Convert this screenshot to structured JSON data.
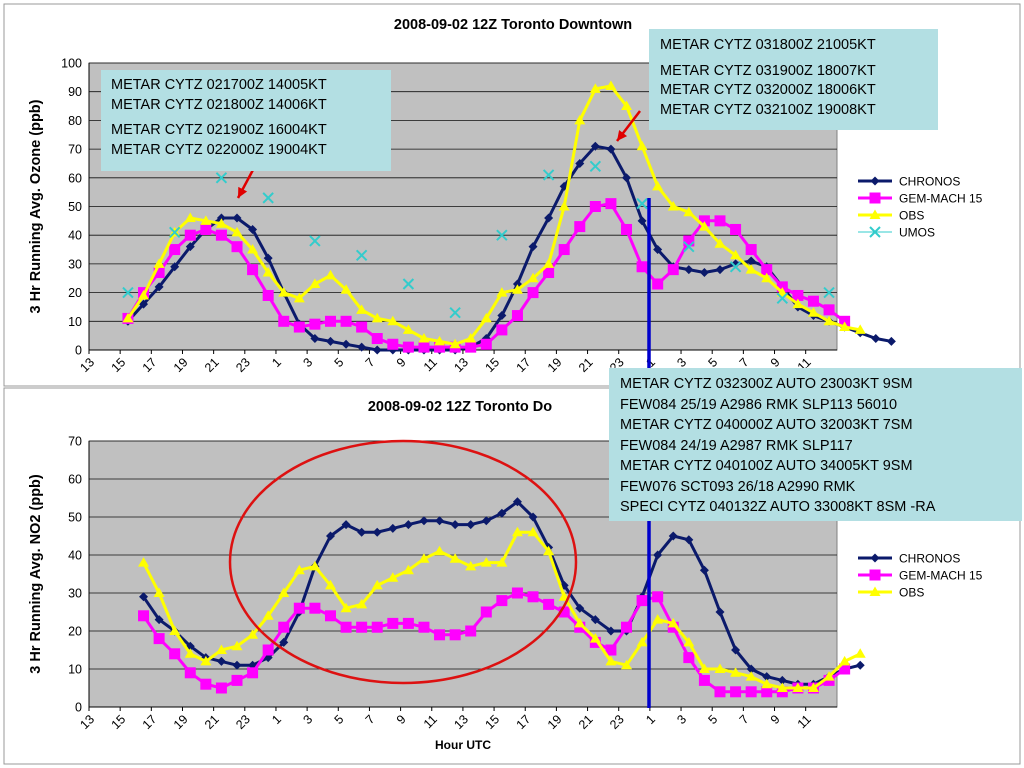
{
  "charts": [
    {
      "title": "2008-09-02 12Z Toronto Downtown",
      "ylabel": "3 Hr Running Avg. Ozone (ppb)",
      "xlabel": "",
      "ylim": [
        0,
        100
      ],
      "yticks": [
        0,
        10,
        20,
        30,
        40,
        50,
        60,
        70,
        80,
        90,
        100
      ],
      "series": [
        {
          "name": "CHRONOS",
          "color": "#0b1a6b"
        },
        {
          "name": "GEM-MACH 15",
          "color": "#ff00ff"
        },
        {
          "name": "OBS",
          "color": "#ffff00"
        },
        {
          "name": "UMOS",
          "color": "#33cccc"
        }
      ]
    },
    {
      "title": "2008-09-02 12Z Toronto Do",
      "ylabel": "3 Hr Running Avg. NO2 (ppb)",
      "xlabel": "Hour UTC",
      "ylim": [
        0,
        70
      ],
      "yticks": [
        0,
        10,
        20,
        30,
        40,
        50,
        60,
        70
      ],
      "series": [
        {
          "name": "CHRONOS",
          "color": "#0b1a6b"
        },
        {
          "name": "GEM-MACH 15",
          "color": "#ff00ff"
        },
        {
          "name": "OBS",
          "color": "#ffff00"
        }
      ]
    }
  ],
  "chart_data": [
    {
      "type": "line",
      "title": "2008-09-02 12Z Toronto Downtown",
      "ylabel": "3 Hr Running Avg. Ozone (ppb)",
      "ylim": [
        0,
        100
      ],
      "x_tick_labels": [
        "13",
        "15",
        "17",
        "19",
        "21",
        "23",
        "1",
        "3",
        "5",
        "7",
        "9",
        "11",
        "13",
        "15",
        "17",
        "19",
        "21",
        "23",
        "1",
        "3",
        "5",
        "7",
        "9",
        "11"
      ],
      "x_start_hour": 13,
      "legend_position": "right",
      "grid": true,
      "series": [
        {
          "name": "CHRONOS",
          "marker": "diamond",
          "start_index": 2,
          "values": [
            10,
            16,
            22,
            29,
            36,
            42,
            46,
            46,
            42,
            32,
            20,
            9,
            4,
            3,
            2,
            1,
            0,
            0,
            0,
            0,
            0,
            0,
            1,
            4,
            12,
            23,
            36,
            46,
            57,
            65,
            71,
            70,
            60,
            45,
            35,
            29,
            28,
            27,
            28,
            30,
            31,
            29,
            22,
            15,
            12,
            10,
            8,
            6,
            4,
            3
          ]
        },
        {
          "name": "GEM-MACH 15",
          "marker": "square",
          "start_index": 2,
          "values": [
            11,
            20,
            27,
            35,
            40,
            42,
            40,
            36,
            28,
            19,
            10,
            8,
            9,
            10,
            10,
            8,
            4,
            2,
            1,
            1,
            1,
            1,
            1,
            2,
            7,
            12,
            20,
            27,
            35,
            43,
            50,
            51,
            42,
            29,
            23,
            28,
            38,
            45,
            45,
            42,
            35,
            28,
            22,
            19,
            17,
            14,
            10
          ]
        },
        {
          "name": "OBS",
          "marker": "triangle",
          "start_index": 2,
          "values": [
            11,
            19,
            30,
            41,
            46,
            45,
            44,
            41,
            35,
            27,
            20,
            18,
            23,
            26,
            21,
            14,
            11,
            10,
            7,
            4,
            3,
            2,
            4,
            11,
            20,
            21,
            25,
            30,
            50,
            80,
            91,
            92,
            85,
            71,
            57,
            50,
            48,
            43,
            37,
            33,
            28,
            25,
            20,
            16,
            13,
            10,
            8,
            7
          ]
        },
        {
          "name": "UMOS",
          "marker": "x",
          "start_index": 2,
          "step": 3,
          "values": [
            20,
            41,
            60,
            53,
            38,
            33,
            23,
            13,
            40,
            61,
            64,
            51,
            36,
            29,
            18,
            20
          ]
        }
      ]
    },
    {
      "type": "line",
      "title": "2008-09-02 12Z Toronto Do",
      "xlabel": "Hour UTC",
      "ylabel": "3 Hr Running Avg. NO2 (ppb)",
      "ylim": [
        0,
        70
      ],
      "x_tick_labels": [
        "13",
        "15",
        "17",
        "19",
        "21",
        "23",
        "1",
        "3",
        "5",
        "7",
        "9",
        "11",
        "13",
        "15",
        "17",
        "19",
        "21",
        "23",
        "1",
        "3",
        "5",
        "7",
        "9",
        "11"
      ],
      "x_start_hour": 13,
      "legend_position": "right",
      "grid": true,
      "series": [
        {
          "name": "CHRONOS",
          "marker": "diamond",
          "start_index": 3,
          "values": [
            29,
            23,
            20,
            16,
            13,
            12,
            11,
            11,
            13,
            17,
            25,
            37,
            45,
            48,
            46,
            46,
            47,
            48,
            49,
            49,
            48,
            48,
            49,
            51,
            54,
            50,
            42,
            32,
            26,
            23,
            20,
            20,
            29,
            40,
            45,
            44,
            36,
            25,
            15,
            10,
            8,
            7,
            6,
            6,
            8,
            10,
            11
          ]
        },
        {
          "name": "GEM-MACH 15",
          "marker": "square",
          "start_index": 3,
          "values": [
            24,
            18,
            14,
            9,
            6,
            5,
            7,
            9,
            15,
            21,
            26,
            26,
            24,
            21,
            21,
            21,
            22,
            22,
            21,
            19,
            19,
            20,
            25,
            28,
            30,
            29,
            27,
            25,
            21,
            17,
            15,
            21,
            28,
            29,
            21,
            13,
            7,
            4,
            4,
            4,
            4,
            4,
            5,
            5,
            7,
            10
          ]
        },
        {
          "name": "OBS",
          "marker": "triangle",
          "start_index": 3,
          "values": [
            38,
            30,
            20,
            14,
            12,
            15,
            16,
            19,
            24,
            30,
            36,
            37,
            32,
            26,
            27,
            32,
            34,
            36,
            39,
            41,
            39,
            37,
            38,
            38,
            46,
            46,
            41,
            29,
            22,
            18,
            12,
            11,
            17,
            23,
            22,
            17,
            10,
            10,
            9,
            8,
            6,
            5,
            5,
            5,
            8,
            12,
            14
          ]
        }
      ]
    }
  ],
  "callouts": [
    {
      "id": "top-left",
      "lines": [
        "METAR CYTZ 021700Z 14005KT",
        "METAR CYTZ 021800Z 14006KT",
        "",
        "METAR CYTZ 021900Z 16004KT",
        "METAR CYTZ 022000Z 19004KT"
      ]
    },
    {
      "id": "top-right",
      "lines": [
        "METAR CYTZ 031800Z 21005KT",
        "",
        "METAR CYTZ 031900Z 18007KT",
        "METAR CYTZ 032000Z 18006KT",
        "METAR CYTZ 032100Z 19008KT"
      ]
    },
    {
      "id": "middle-right",
      "lines": [
        "METAR CYTZ 032300Z AUTO 23003KT 9SM",
        "FEW084 25/19 A2986 RMK SLP113 56010",
        "METAR CYTZ 040000Z AUTO 32003KT 7SM",
        "FEW084 24/19 A2987 RMK SLP117",
        "METAR CYTZ 040100Z AUTO 34005KT 9SM",
        "FEW076 SCT093 26/18 A2990 RMK",
        "SPECI CYTZ 040132Z AUTO 33008KT 8SM -RA"
      ]
    }
  ],
  "colors": {
    "plot_bg": "#c0c0c0",
    "chronos": "#0b1a6b",
    "gem_mach": "#ff00ff",
    "obs": "#ffff00",
    "umos": "#33cccc",
    "callout_bg": "#b3dfe3",
    "marker_line": "#0000cc",
    "arrow": "#e00000",
    "ellipse": "#dd1111"
  }
}
